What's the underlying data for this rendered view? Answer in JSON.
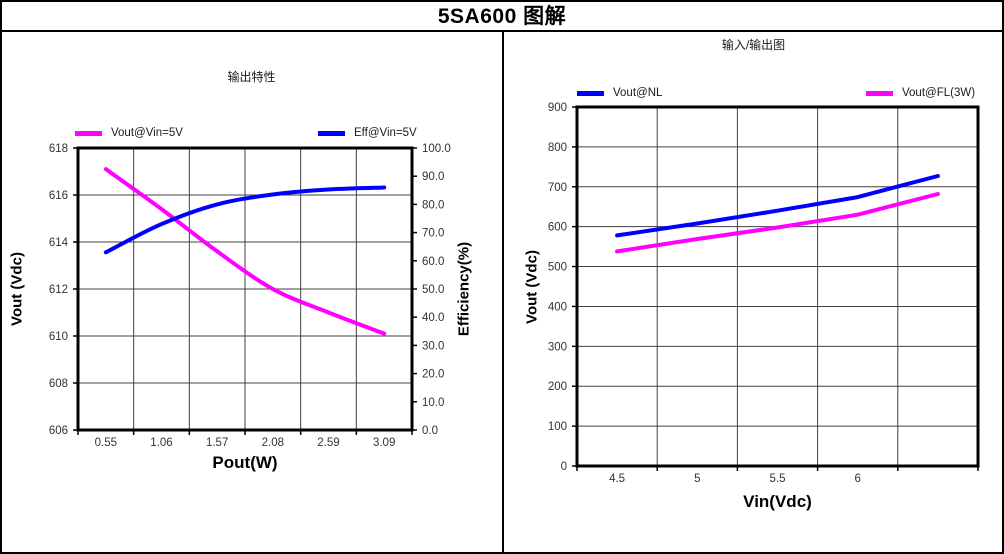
{
  "window": {
    "title": "5SA600 图解"
  },
  "colors": {
    "magenta": "#FF00FF",
    "blue": "#0000FF",
    "grid": "#404040",
    "axis_border": "#000000",
    "tick_text": "#333333"
  },
  "chart_data": [
    {
      "type": "line",
      "title": "输出特性",
      "xlabel": "Pout(W)",
      "ylabel": "Vout (Vdc)",
      "y2label": "Efficiency(%)",
      "grid": true,
      "legend_position": "top",
      "categories": [
        "0.55",
        "1.06",
        "1.57",
        "2.08",
        "2.59",
        "3.09"
      ],
      "y_axis": {
        "min": 606,
        "max": 618,
        "step": 2,
        "tick_labels": [
          "618",
          "616",
          "614",
          "612",
          "610",
          "608",
          "606"
        ]
      },
      "y2_axis": {
        "min": 0,
        "max": 100,
        "step": 10,
        "tick_labels": [
          "100.0",
          "90.0",
          "80.0",
          "70.0",
          "60.0",
          "50.0",
          "40.0",
          "30.0",
          "20.0",
          "10.0",
          "0.0"
        ]
      },
      "series": [
        {
          "name": "Vout@Vin=5V",
          "axis": "y",
          "color": "#FF00FF",
          "smooth": true,
          "values": [
            617.1,
            615.4,
            613.6,
            612.0,
            611.0,
            610.1
          ]
        },
        {
          "name": "Eff@Vin=5V",
          "axis": "y2",
          "color": "#0000FF",
          "smooth": true,
          "values": [
            63,
            73,
            80,
            83.5,
            85.3,
            86
          ]
        }
      ]
    },
    {
      "type": "line",
      "title": "输入/输出图",
      "xlabel": "Vin(Vdc)",
      "ylabel": "Vout (Vdc)",
      "grid": true,
      "legend_position": "top",
      "categories": [
        "4.5",
        "5",
        "5.5",
        "6",
        ""
      ],
      "y_axis": {
        "min": 0,
        "max": 900,
        "step": 100,
        "tick_labels": [
          "900",
          "800",
          "700",
          "600",
          "500",
          "400",
          "300",
          "200",
          "100",
          "0"
        ]
      },
      "series": [
        {
          "name": "Vout@NL",
          "axis": "y",
          "color": "#0000FF",
          "smooth": false,
          "values": [
            578,
            608,
            640,
            674,
            727
          ]
        },
        {
          "name": "Vout@FL(3W)",
          "axis": "y",
          "color": "#FF00FF",
          "smooth": false,
          "values": [
            538,
            569,
            598,
            630,
            682
          ]
        }
      ]
    }
  ]
}
